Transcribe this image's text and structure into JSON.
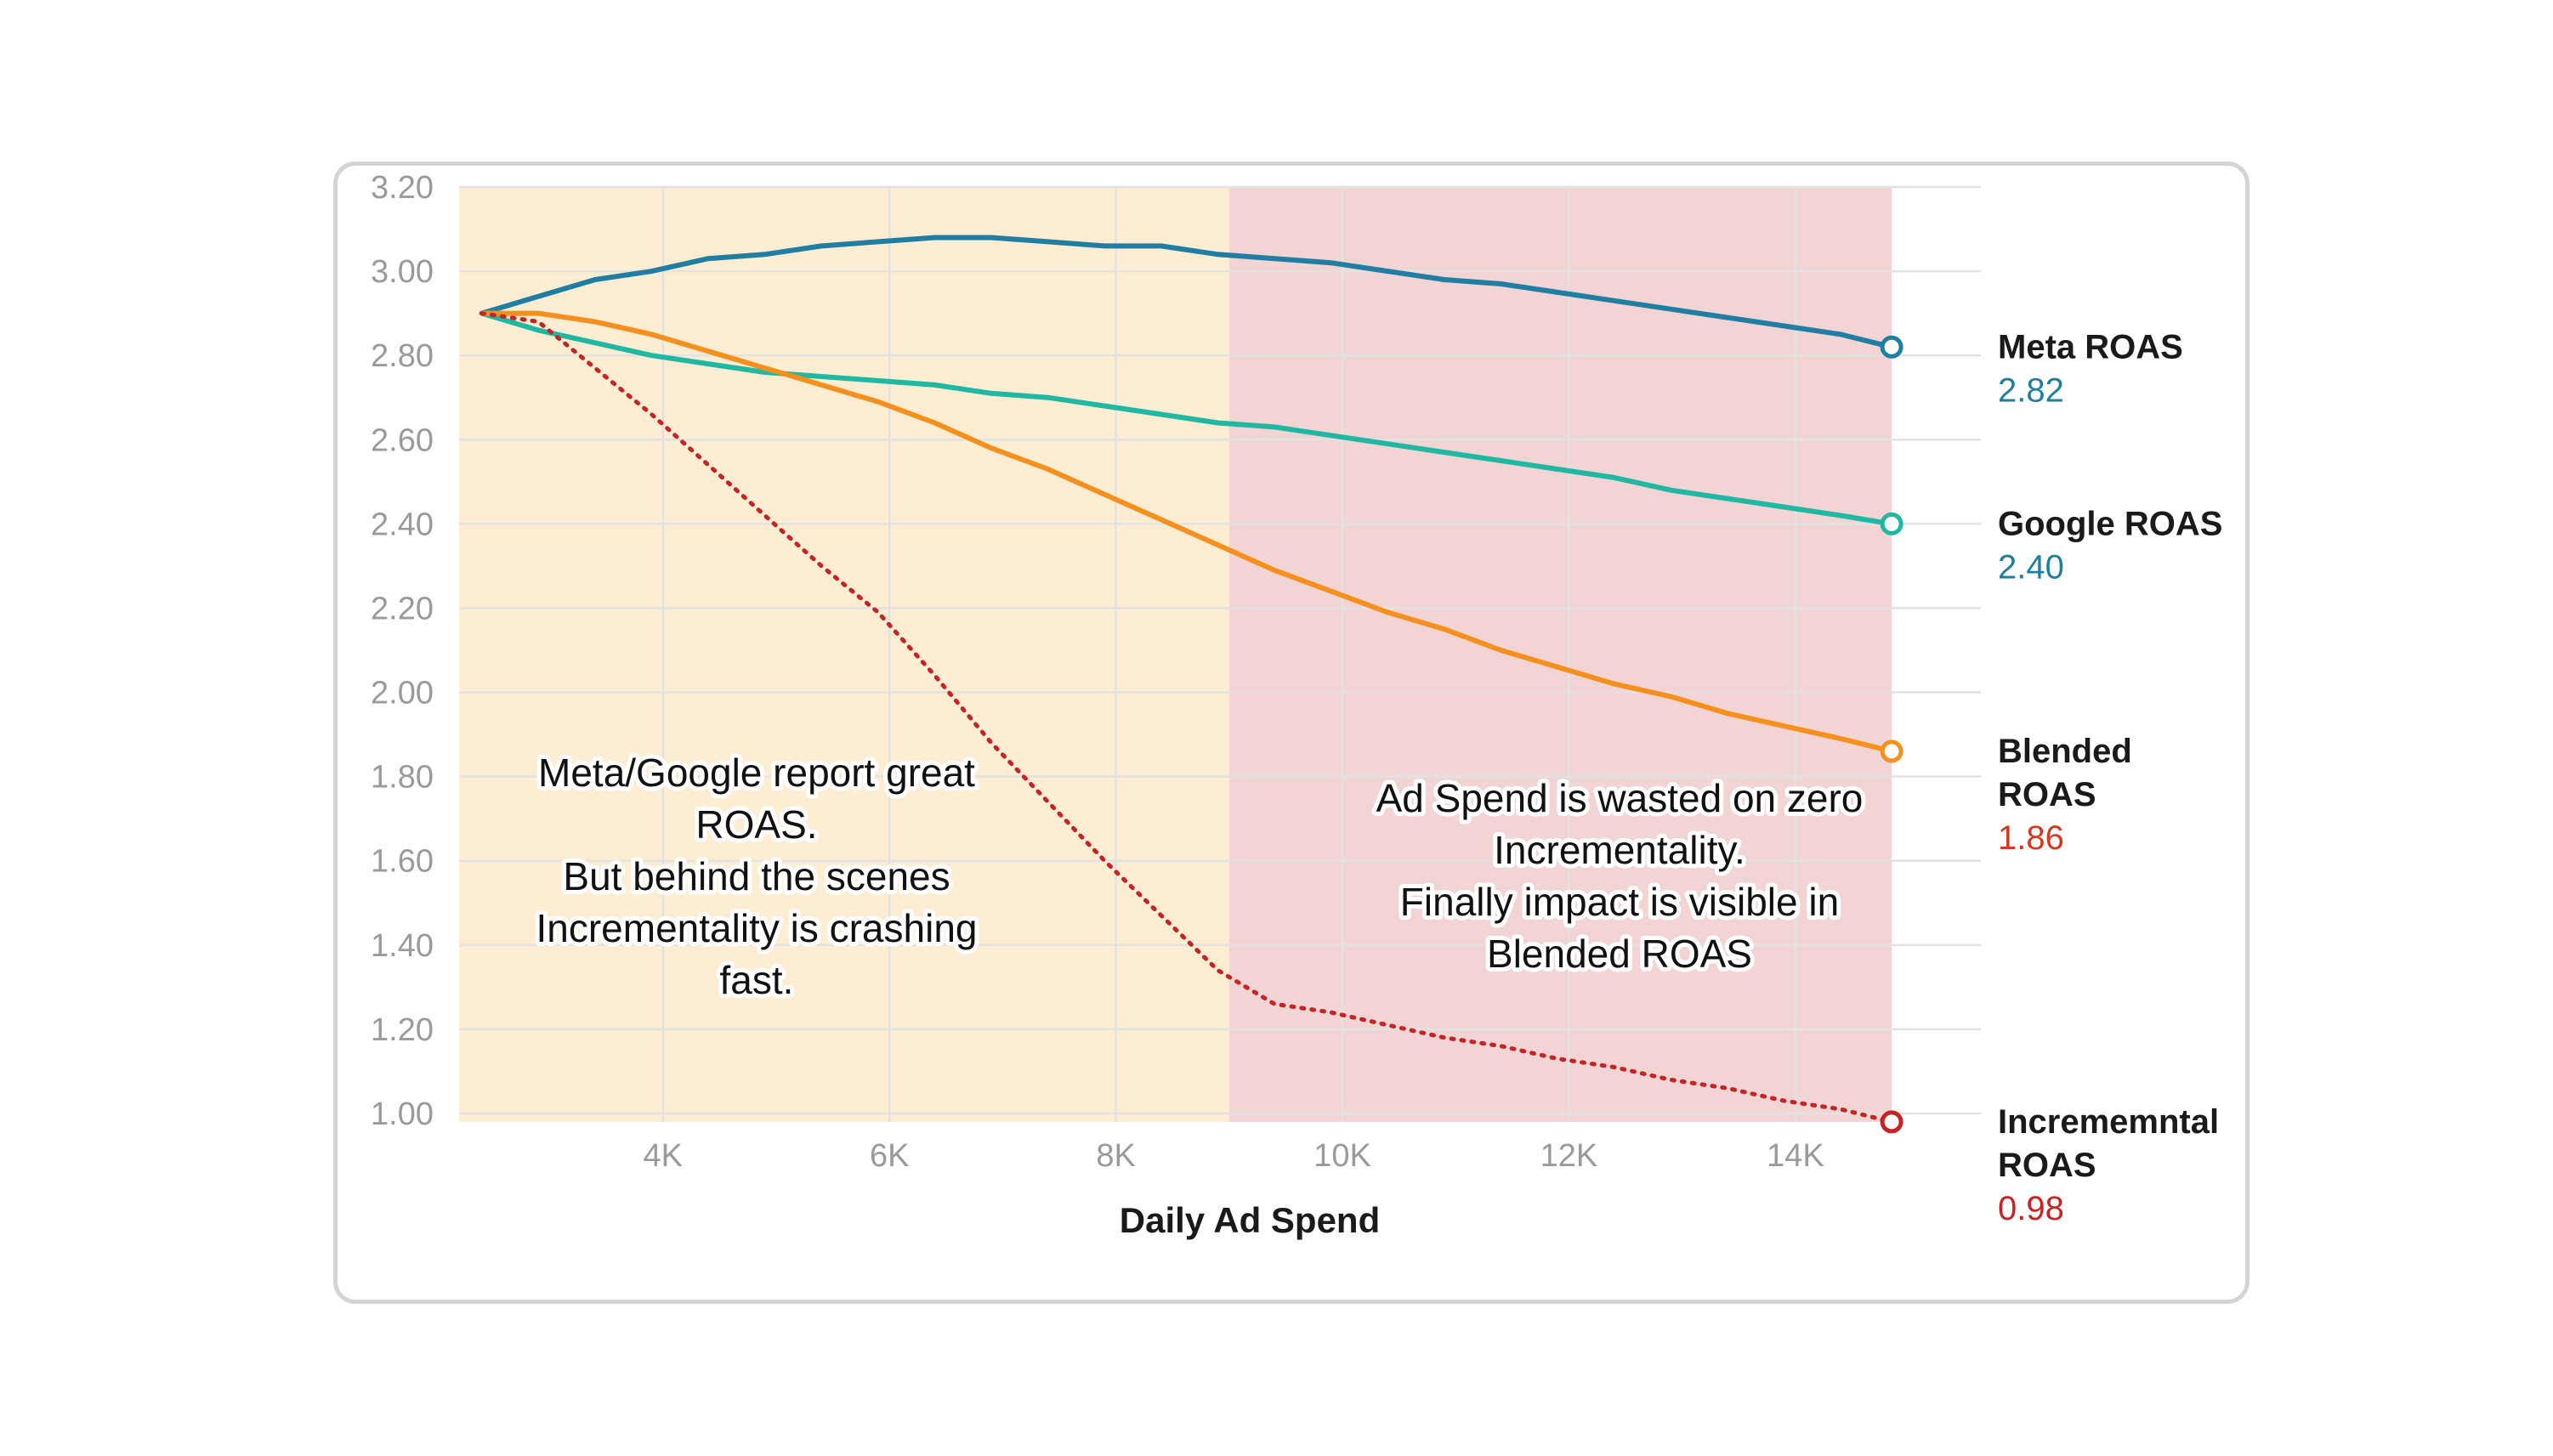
{
  "chart_data": {
    "type": "line",
    "xlabel": "Daily Ad Spend",
    "ylabel": "",
    "xlim": [
      2200,
      15600
    ],
    "ylim": [
      1.0,
      3.2
    ],
    "x_ticks": [
      4000,
      6000,
      8000,
      10000,
      12000,
      14000
    ],
    "x_tick_labels": [
      "4K",
      "6K",
      "8K",
      "10K",
      "12K",
      "14K"
    ],
    "y_ticks": [
      1.0,
      1.2,
      1.4,
      1.6,
      1.8,
      2.0,
      2.2,
      2.4,
      2.6,
      2.8,
      3.0,
      3.2
    ],
    "y_tick_labels": [
      "1.00",
      "1.20",
      "1.40",
      "1.60",
      "1.80",
      "2.00",
      "2.20",
      "2.40",
      "2.60",
      "2.80",
      "3.00",
      "3.20"
    ],
    "grid": true,
    "regions": [
      {
        "x_start": 2200,
        "x_end": 9000,
        "color": "#fdedd3"
      },
      {
        "x_start": 9000,
        "x_end": 14850,
        "color": "#f3d4d4"
      }
    ],
    "x": [
      2400,
      2900,
      3400,
      3900,
      4400,
      4900,
      5400,
      5900,
      6400,
      6900,
      7400,
      7900,
      8400,
      8900,
      9400,
      9900,
      10400,
      10900,
      11400,
      11900,
      12400,
      12900,
      13400,
      13900,
      14400,
      14850
    ],
    "series": [
      {
        "name": "Meta ROAS",
        "label_lines": [
          "Meta ROAS"
        ],
        "end_label": "2.82",
        "color": "#1f7ea1",
        "value_color": "#1f7ea1",
        "dashed": false,
        "values": [
          2.9,
          2.94,
          2.98,
          3.0,
          3.03,
          3.04,
          3.06,
          3.07,
          3.08,
          3.08,
          3.07,
          3.06,
          3.06,
          3.04,
          3.03,
          3.02,
          3.0,
          2.98,
          2.97,
          2.95,
          2.93,
          2.91,
          2.89,
          2.87,
          2.85,
          2.82
        ]
      },
      {
        "name": "Google ROAS",
        "label_lines": [
          "Google ROAS"
        ],
        "end_label": "2.40",
        "color": "#20b8a2",
        "value_color": "#1f7ea1",
        "dashed": false,
        "values": [
          2.9,
          2.86,
          2.83,
          2.8,
          2.78,
          2.76,
          2.75,
          2.74,
          2.73,
          2.71,
          2.7,
          2.68,
          2.66,
          2.64,
          2.63,
          2.61,
          2.59,
          2.57,
          2.55,
          2.53,
          2.51,
          2.48,
          2.46,
          2.44,
          2.42,
          2.4
        ]
      },
      {
        "name": "Blended ROAS",
        "label_lines": [
          "Blended",
          "ROAS"
        ],
        "end_label": "1.86",
        "color": "#f5901e",
        "value_color": "#d13a1f",
        "dashed": false,
        "values": [
          2.9,
          2.9,
          2.88,
          2.85,
          2.81,
          2.77,
          2.73,
          2.69,
          2.64,
          2.58,
          2.53,
          2.47,
          2.41,
          2.35,
          2.29,
          2.24,
          2.19,
          2.15,
          2.1,
          2.06,
          2.02,
          1.99,
          1.95,
          1.92,
          1.89,
          1.86
        ]
      },
      {
        "name": "Incrememntal ROAS",
        "label_lines": [
          "Incrememntal",
          "ROAS"
        ],
        "end_label": "0.98",
        "color": "#c42424",
        "value_color": "#c42424",
        "dashed": true,
        "values": [
          2.9,
          2.88,
          2.77,
          2.66,
          2.54,
          2.42,
          2.3,
          2.19,
          2.04,
          1.88,
          1.74,
          1.6,
          1.47,
          1.34,
          1.26,
          1.24,
          1.21,
          1.18,
          1.16,
          1.13,
          1.11,
          1.08,
          1.06,
          1.03,
          1.01,
          0.98
        ]
      }
    ],
    "annotations": [
      {
        "lines": [
          "Meta/Google report great",
          "ROAS.",
          "But behind the scenes",
          "Incrementality is crashing",
          "fast."
        ]
      },
      {
        "lines": [
          "Ad Spend is wasted on zero",
          "Incrementality.",
          "Finally impact is visible in",
          "Blended ROAS"
        ]
      }
    ]
  }
}
